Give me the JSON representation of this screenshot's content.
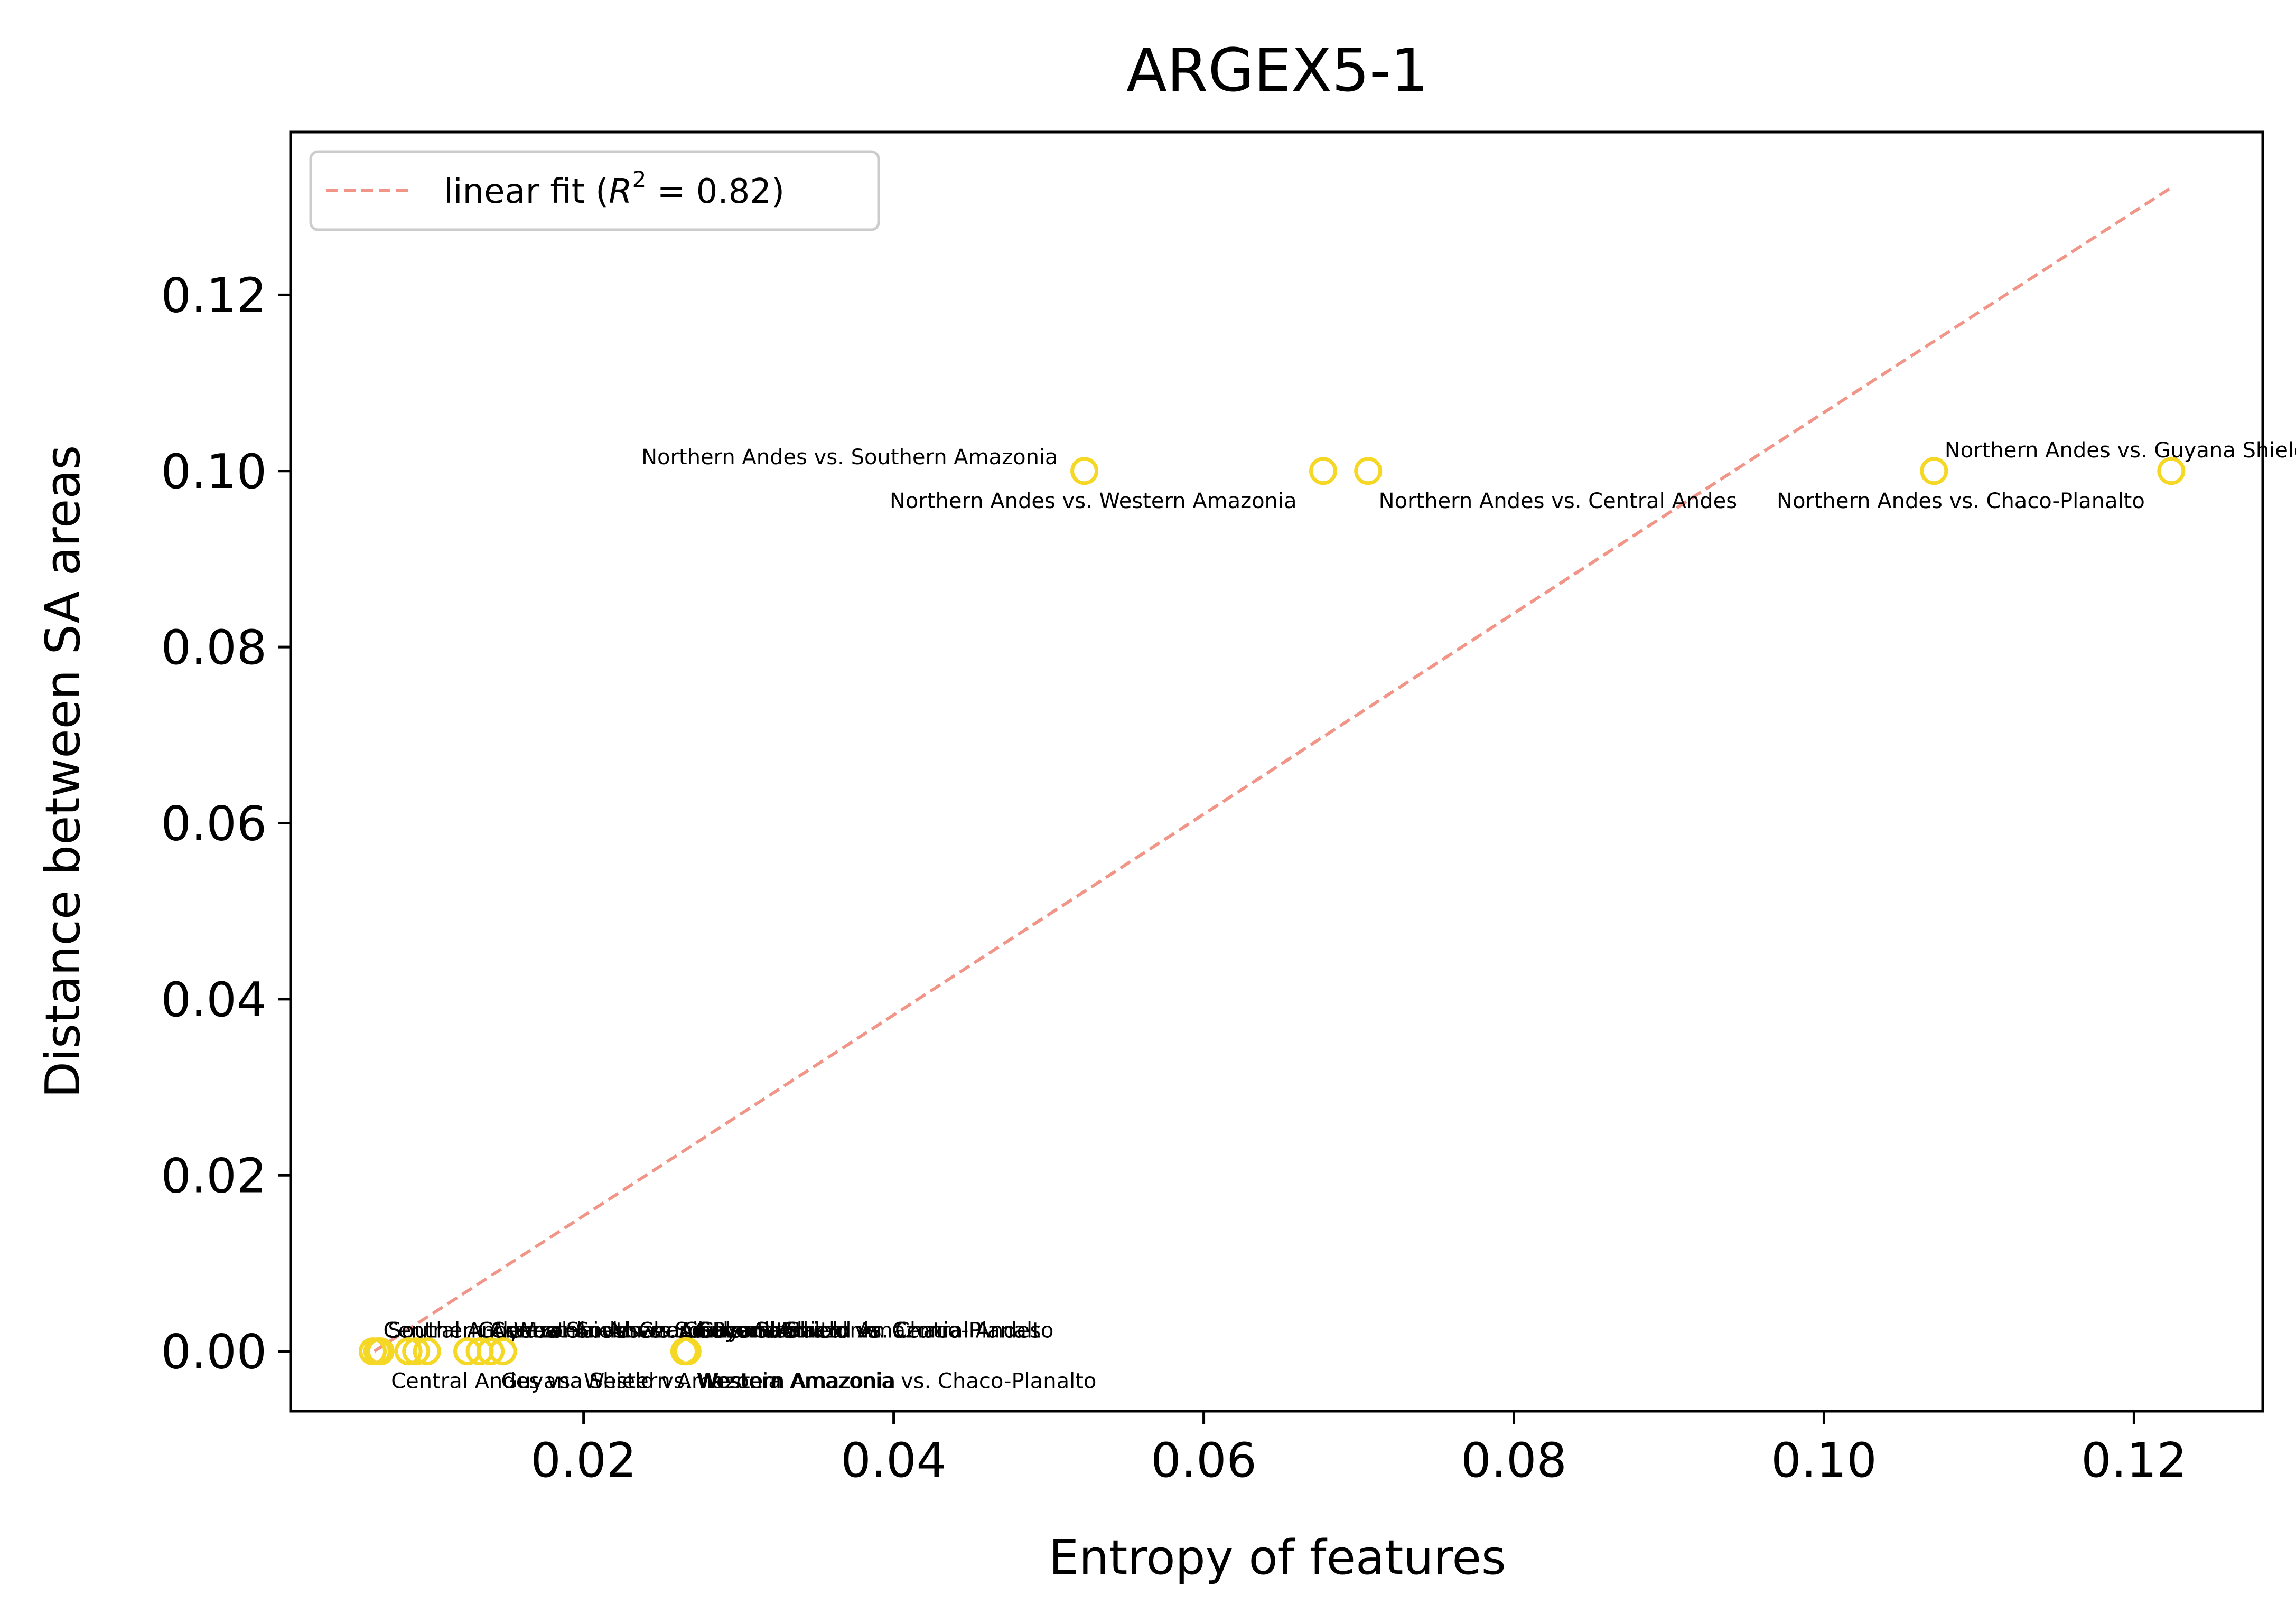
{
  "chart_data": {
    "type": "scatter",
    "title": "ARGEX5-1",
    "xlabel": "Entropy of features",
    "ylabel": "Distance between SA areas",
    "xlim": [
      0.0011,
      0.1283
    ],
    "ylim": [
      -0.0068,
      0.1385
    ],
    "x_ticks": [
      0.02,
      0.04,
      0.06,
      0.08,
      0.1,
      0.12
    ],
    "x_tick_labels": [
      "0.02",
      "0.04",
      "0.06",
      "0.08",
      "0.10",
      "0.12"
    ],
    "y_ticks": [
      0.0,
      0.02,
      0.04,
      0.06,
      0.08,
      0.1,
      0.12
    ],
    "y_tick_labels": [
      "0.00",
      "0.02",
      "0.04",
      "0.06",
      "0.08",
      "0.10",
      "0.12"
    ],
    "grid": false,
    "legend_placement": "top-left",
    "marker_color": "#f5d726",
    "fit_color": "#f09587",
    "legend": {
      "prefix": "linear fit (",
      "r_symbol": "R",
      "superscript": "2",
      "suffix": " = 0.82)"
    },
    "fit_line": {
      "r2": 0.82,
      "x": [
        0.0065,
        0.1225
      ],
      "y": [
        0.0,
        0.1323
      ]
    },
    "points": [
      {
        "x": 0.0523,
        "y": 0.1,
        "label": "Northern Andes vs. Southern Amazonia",
        "pos": "upper-left"
      },
      {
        "x": 0.0677,
        "y": 0.1,
        "label": "Northern Andes vs. Western Amazonia",
        "pos": "lower-left"
      },
      {
        "x": 0.0706,
        "y": 0.1,
        "label": "Northern Andes vs. Central Andes",
        "pos": "lower-right"
      },
      {
        "x": 0.1071,
        "y": 0.1,
        "label": "Northern Andes vs. Guyana Shield",
        "pos": "upper-right"
      },
      {
        "x": 0.1224,
        "y": 0.1,
        "label": "Northern Andes vs. Chaco-Planalto",
        "pos": "lower-left"
      },
      {
        "x": 0.0064,
        "y": 0.0,
        "label": "Central Andes vs. Southern Amazonia",
        "pos": "upper-right"
      },
      {
        "x": 0.0067,
        "y": 0.0,
        "label": "Southern Amazonia vs. Chaco-Planalto",
        "pos": "upper-right"
      },
      {
        "x": 0.0069,
        "y": 0.0,
        "label": "Central Andes vs. Western Amazonia",
        "pos": "lower-right"
      },
      {
        "x": 0.0087,
        "y": 0.0,
        "label": "",
        "pos": "none"
      },
      {
        "x": 0.0092,
        "y": 0.0,
        "label": "",
        "pos": "none"
      },
      {
        "x": 0.0099,
        "y": 0.0,
        "label": "",
        "pos": "none"
      },
      {
        "x": 0.0125,
        "y": 0.0,
        "label": "Guyana Shield vs. Southern Amazonia",
        "pos": "upper-right"
      },
      {
        "x": 0.0133,
        "y": 0.0,
        "label": "Central Andes vs. Chaco-Planalto",
        "pos": "upper-right"
      },
      {
        "x": 0.014,
        "y": 0.0,
        "label": "Guyana Shield vs. Western Amazonia",
        "pos": "lower-right"
      },
      {
        "x": 0.0148,
        "y": 0.0,
        "label": "Western Amazonia vs. Southern Amazonia",
        "pos": "upper-right"
      },
      {
        "x": 0.0265,
        "y": 0.0,
        "label": "Guyana Shield vs. Central Andes",
        "pos": "upper-right"
      },
      {
        "x": 0.0266,
        "y": 0.0,
        "label": "Western Amazonia vs. Chaco-Planalto",
        "pos": "lower-right"
      },
      {
        "x": 0.0267,
        "y": 0.0,
        "label": "Guyana Shield vs. Chaco-Planalto",
        "pos": "upper-right"
      }
    ]
  }
}
